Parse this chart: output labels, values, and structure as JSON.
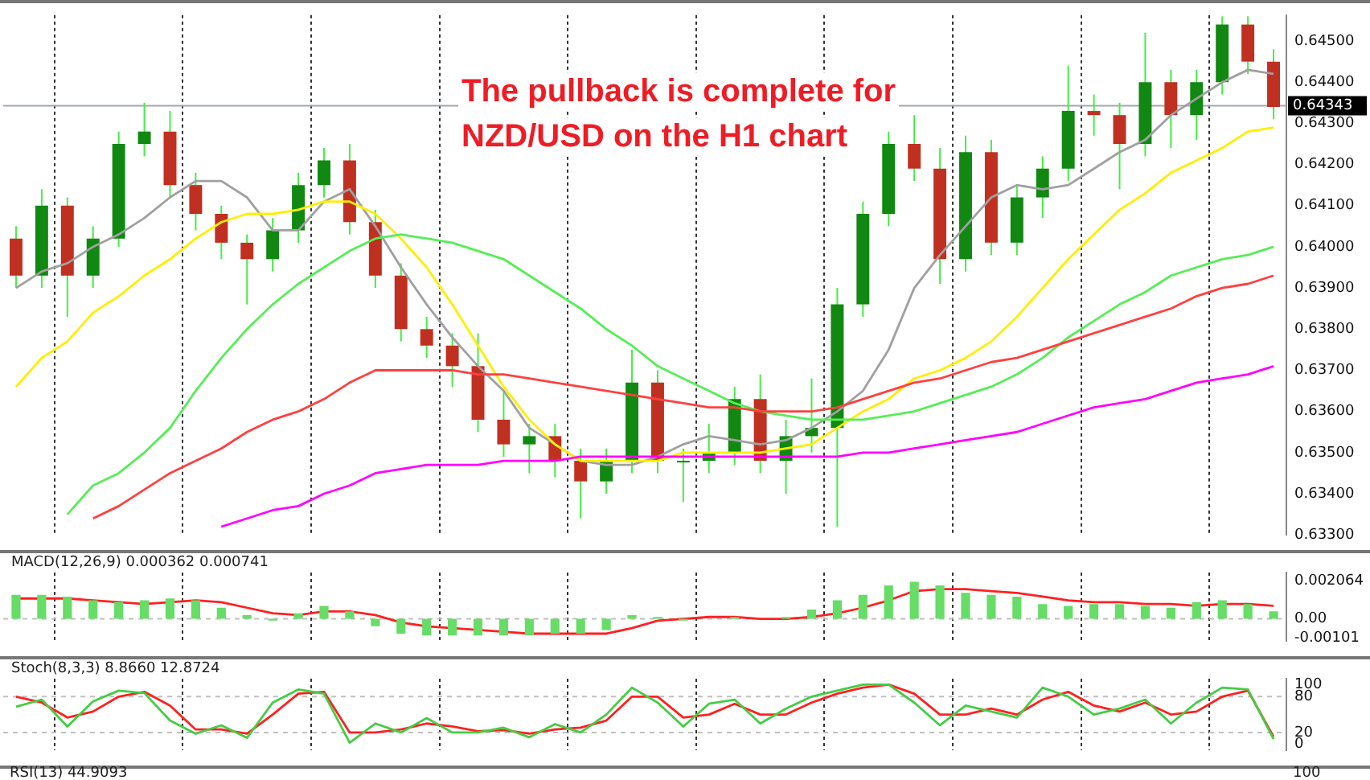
{
  "chart_data": [
    {
      "type": "candlestick",
      "categories": [
        null,
        null,
        null,
        null,
        null,
        null,
        null,
        null,
        null,
        null,
        null,
        null,
        null,
        null,
        null,
        null,
        null,
        null,
        null,
        null,
        null,
        null,
        null,
        null,
        null,
        null,
        null,
        null,
        null,
        null,
        null,
        null,
        null,
        null,
        null,
        null,
        null,
        null,
        null,
        null,
        null,
        null,
        null,
        null,
        null,
        null,
        null,
        null,
        null,
        null
      ],
      "ohlc": [
        [
          0.6402,
          0.6405,
          0.639,
          0.6393
        ],
        [
          0.6393,
          0.6414,
          0.639,
          0.641
        ],
        [
          0.641,
          0.6412,
          0.6383,
          0.6393
        ],
        [
          0.6393,
          0.6405,
          0.639,
          0.6402
        ],
        [
          0.6402,
          0.6428,
          0.64,
          0.6425
        ],
        [
          0.6425,
          0.6435,
          0.6422,
          0.6428
        ],
        [
          0.6428,
          0.6433,
          0.6412,
          0.6415
        ],
        [
          0.6415,
          0.6418,
          0.6404,
          0.6408
        ],
        [
          0.6408,
          0.641,
          0.6397,
          0.6401
        ],
        [
          0.6401,
          0.6403,
          0.6386,
          0.6397
        ],
        [
          0.6397,
          0.6407,
          0.6394,
          0.6404
        ],
        [
          0.6404,
          0.6418,
          0.6401,
          0.6415
        ],
        [
          0.6415,
          0.6424,
          0.6412,
          0.6421
        ],
        [
          0.6421,
          0.6425,
          0.6403,
          0.6406
        ],
        [
          0.6406,
          0.6409,
          0.639,
          0.6393
        ],
        [
          0.6393,
          0.6396,
          0.6377,
          0.638
        ],
        [
          0.638,
          0.6383,
          0.6373,
          0.6376
        ],
        [
          0.6376,
          0.6379,
          0.6366,
          0.6371
        ],
        [
          0.6371,
          0.6379,
          0.6355,
          0.6358
        ],
        [
          0.6358,
          0.6365,
          0.6349,
          0.6352
        ],
        [
          0.6352,
          0.6357,
          0.6345,
          0.6354
        ],
        [
          0.6354,
          0.6357,
          0.6344,
          0.6348
        ],
        [
          0.6348,
          0.6351,
          0.6334,
          0.6343
        ],
        [
          0.6343,
          0.6351,
          0.634,
          0.6348
        ],
        [
          0.6348,
          0.6375,
          0.6345,
          0.6367
        ],
        [
          0.6367,
          0.637,
          0.6345,
          0.6348
        ],
        [
          0.6348,
          0.6351,
          0.6338,
          0.6348
        ],
        [
          0.6348,
          0.6357,
          0.6345,
          0.635
        ],
        [
          0.635,
          0.6366,
          0.6347,
          0.6363
        ],
        [
          0.6363,
          0.6369,
          0.6345,
          0.6348
        ],
        [
          0.6348,
          0.6358,
          0.634,
          0.6354
        ],
        [
          0.6354,
          0.6368,
          0.635,
          0.6356
        ],
        [
          0.6356,
          0.639,
          0.6332,
          0.6386
        ],
        [
          0.6386,
          0.6411,
          0.6383,
          0.6408
        ],
        [
          0.6408,
          0.6428,
          0.6405,
          0.6425
        ],
        [
          0.6425,
          0.6432,
          0.6416,
          0.6419
        ],
        [
          0.6419,
          0.6424,
          0.6391,
          0.6397
        ],
        [
          0.6397,
          0.6427,
          0.6394,
          0.6423
        ],
        [
          0.6423,
          0.6426,
          0.6398,
          0.6401
        ],
        [
          0.6401,
          0.6415,
          0.6398,
          0.6412
        ],
        [
          0.6412,
          0.6422,
          0.6407,
          0.6419
        ],
        [
          0.6419,
          0.6444,
          0.6416,
          0.6433
        ],
        [
          0.6433,
          0.6437,
          0.6427,
          0.6432
        ],
        [
          0.6432,
          0.6435,
          0.6414,
          0.6425
        ],
        [
          0.6425,
          0.6452,
          0.6422,
          0.644
        ],
        [
          0.644,
          0.6443,
          0.6424,
          0.6432
        ],
        [
          0.6432,
          0.6443,
          0.6426,
          0.644
        ],
        [
          0.644,
          0.6456,
          0.6437,
          0.6454
        ],
        [
          0.6454,
          0.6456,
          0.6442,
          0.6445
        ],
        [
          0.6445,
          0.6448,
          0.6431,
          0.6434
        ]
      ],
      "series": [
        {
          "type": "line",
          "color": "#ff00ff",
          "values": [
            null,
            null,
            null,
            null,
            null,
            null,
            null,
            null,
            0.6332,
            0.6334,
            0.6336,
            0.6337,
            0.634,
            0.6342,
            0.6345,
            0.6346,
            0.6347,
            0.6347,
            0.6347,
            0.6348,
            0.6348,
            0.6348,
            0.6349,
            0.6349,
            0.6349,
            0.6349,
            0.6349,
            0.6349,
            0.6349,
            0.6349,
            0.6349,
            0.6349,
            0.6349,
            0.635,
            0.635,
            0.6351,
            0.6352,
            0.6353,
            0.6354,
            0.6355,
            0.6357,
            0.6359,
            0.6361,
            0.6362,
            0.6363,
            0.6365,
            0.6367,
            0.6368,
            0.6369,
            0.6371
          ]
        },
        {
          "type": "line",
          "color": "#ff4040",
          "values": [
            null,
            null,
            null,
            0.6334,
            0.6337,
            0.6341,
            0.6345,
            0.6348,
            0.6351,
            0.6355,
            0.6358,
            0.636,
            0.6363,
            0.6367,
            0.637,
            0.637,
            0.637,
            0.637,
            0.6369,
            0.6369,
            0.6368,
            0.6367,
            0.6366,
            0.6365,
            0.6364,
            0.6363,
            0.6362,
            0.6361,
            0.6361,
            0.636,
            0.636,
            0.636,
            0.6361,
            0.6363,
            0.6365,
            0.6367,
            0.6368,
            0.637,
            0.6372,
            0.6373,
            0.6375,
            0.6377,
            0.6379,
            0.6381,
            0.6383,
            0.6385,
            0.6388,
            0.639,
            0.6391,
            0.6393
          ]
        },
        {
          "type": "line",
          "color": "#55ee55",
          "values": [
            null,
            null,
            0.6335,
            0.6342,
            0.6345,
            0.635,
            0.6356,
            0.6365,
            0.6373,
            0.638,
            0.6386,
            0.6391,
            0.6395,
            0.6399,
            0.6402,
            0.6403,
            0.6402,
            0.6401,
            0.6399,
            0.6397,
            0.6393,
            0.6389,
            0.6385,
            0.638,
            0.6376,
            0.6371,
            0.6368,
            0.6365,
            0.6362,
            0.636,
            0.6359,
            0.6358,
            0.6358,
            0.6358,
            0.6359,
            0.636,
            0.6362,
            0.6364,
            0.6366,
            0.6369,
            0.6373,
            0.6378,
            0.6382,
            0.6386,
            0.6389,
            0.6393,
            0.6395,
            0.6397,
            0.6398,
            0.64
          ]
        },
        {
          "type": "line",
          "color": "#ffee00",
          "values": [
            0.6366,
            0.6373,
            0.6377,
            0.6384,
            0.6388,
            0.6393,
            0.6397,
            0.6402,
            0.6406,
            0.6408,
            0.6408,
            0.6409,
            0.6411,
            0.6411,
            0.6408,
            0.6402,
            0.6395,
            0.6386,
            0.6376,
            0.6366,
            0.6358,
            0.6352,
            0.6348,
            0.6348,
            0.6348,
            0.6348,
            0.635,
            0.635,
            0.635,
            0.635,
            0.6351,
            0.6352,
            0.6356,
            0.636,
            0.6363,
            0.6368,
            0.637,
            0.6373,
            0.6377,
            0.6383,
            0.639,
            0.6397,
            0.6403,
            0.6409,
            0.6413,
            0.6418,
            0.6421,
            0.6424,
            0.6428,
            0.6429
          ]
        },
        {
          "type": "line",
          "color": "#a0a0a0",
          "values": [
            0.639,
            0.6394,
            0.6396,
            0.64,
            0.6403,
            0.6407,
            0.6412,
            0.6416,
            0.6416,
            0.6412,
            0.6404,
            0.6404,
            0.6411,
            0.6414,
            0.6405,
            0.6395,
            0.6386,
            0.6378,
            0.6371,
            0.6365,
            0.6356,
            0.6352,
            0.6348,
            0.6347,
            0.6347,
            0.6349,
            0.6352,
            0.6354,
            0.6353,
            0.6352,
            0.6353,
            0.6356,
            0.636,
            0.6365,
            0.6375,
            0.639,
            0.6398,
            0.6405,
            0.6412,
            0.6415,
            0.6414,
            0.6415,
            0.6419,
            0.6423,
            0.6426,
            0.6432,
            0.6436,
            0.644,
            0.6443,
            0.6442
          ]
        }
      ],
      "ylim": [
        0.633,
        0.64563
      ],
      "yticks": [
        {
          "value": 0.633,
          "label": "0.63300"
        },
        {
          "value": 0.634,
          "label": "0.63400"
        },
        {
          "value": 0.635,
          "label": "0.63500"
        },
        {
          "value": 0.636,
          "label": "0.63600"
        },
        {
          "value": 0.637,
          "label": "0.63700"
        },
        {
          "value": 0.638,
          "label": "0.63800"
        },
        {
          "value": 0.639,
          "label": "0.63900"
        },
        {
          "value": 0.64,
          "label": "0.64000"
        },
        {
          "value": 0.641,
          "label": "0.64100"
        },
        {
          "value": 0.642,
          "label": "0.64200"
        },
        {
          "value": 0.643,
          "label": "0.64300"
        },
        {
          "value": 0.644,
          "label": "0.64400"
        },
        {
          "value": 0.645,
          "label": "0.64500"
        }
      ],
      "ref_lines": [
        {
          "axis": "y",
          "value": 0.64343,
          "label": "0.64343",
          "color": "#a0a8b0"
        }
      ],
      "annotations": [
        "The pullback is complete for NZD/USD on the H1 chart"
      ],
      "grid": "x",
      "tick_labels": "y"
    },
    {
      "type": "bar",
      "title": "MACD(12,26,9) 0.000362 0.000741",
      "categories": [
        null,
        null,
        null,
        null,
        null,
        null,
        null,
        null,
        null,
        null,
        null,
        null,
        null,
        null,
        null,
        null,
        null,
        null,
        null,
        null,
        null,
        null,
        null,
        null,
        null,
        null,
        null,
        null,
        null,
        null,
        null,
        null,
        null,
        null,
        null,
        null,
        null,
        null,
        null,
        null,
        null,
        null,
        null,
        null,
        null,
        null,
        null,
        null,
        null,
        null
      ],
      "series": [
        {
          "type": "bar",
          "color": "#66dd66",
          "values": [
            0.0013,
            0.0013,
            0.0012,
            0.001,
            0.0009,
            0.001,
            0.0011,
            0.001,
            0.0006,
            0.0002,
            -0.0001,
            0.0003,
            0.0007,
            0.0004,
            -0.0004,
            -0.0008,
            -0.0009,
            -0.0009,
            -0.0009,
            -0.0009,
            -0.0009,
            -0.0008,
            -0.0008,
            -0.0006,
            0.0002,
            0.0001,
            -0.0001,
            0,
            0.0001,
            0,
            0.0001,
            0.0005,
            0.001,
            0.0013,
            0.0018,
            0.002,
            0.0018,
            0.0014,
            0.0013,
            0.0012,
            0.0008,
            0.0007,
            0.0008,
            0.0008,
            0.0007,
            0.0006,
            0.0009,
            0.001,
            0.0008,
            0.0004
          ]
        },
        {
          "type": "line",
          "color": "#ff2020",
          "values": [
            0.0011,
            0.0011,
            0.0011,
            0.001,
            0.0009,
            0.0008,
            0.0009,
            0.001,
            0.0009,
            0.0006,
            0.0003,
            0.0002,
            0.0004,
            0.0004,
            0.0002,
            -0.0002,
            -0.0004,
            -0.0005,
            -0.0006,
            -0.0007,
            -0.0008,
            -0.0008,
            -0.0008,
            -0.0008,
            -0.0005,
            -0.0001,
            0,
            0.0001,
            0.0001,
            0,
            0,
            0.0001,
            0.0003,
            0.0006,
            0.001,
            0.0015,
            0.0016,
            0.0016,
            0.0015,
            0.0014,
            0.0012,
            0.001,
            0.0009,
            0.0009,
            0.0008,
            0.0008,
            0.0007,
            0.0008,
            0.0008,
            0.0007
          ]
        }
      ],
      "ylim": [
        -0.0012,
        0.0025
      ],
      "yticks": [
        0.002064,
        {
          "value": 0,
          "label": "0.00"
        },
        -0.00101
      ],
      "ref_lines": [
        {
          "axis": "y",
          "value": 0,
          "color": "#c0c0c0",
          "line_style": "dashed"
        }
      ],
      "grid": "x",
      "tick_labels": "y"
    },
    {
      "type": "line",
      "title": "Stoch(8,3,3) 8.8660 12.8724",
      "categories": [
        null,
        null,
        null,
        null,
        null,
        null,
        null,
        null,
        null,
        null,
        null,
        null,
        null,
        null,
        null,
        null,
        null,
        null,
        null,
        null,
        null,
        null,
        null,
        null,
        null,
        null,
        null,
        null,
        null,
        null,
        null,
        null,
        null,
        null,
        null,
        null,
        null,
        null,
        null,
        null,
        null,
        null,
        null,
        null,
        null,
        null,
        null,
        null,
        null,
        null
      ],
      "series": [
        {
          "color": "#44cc44",
          "values": [
            63,
            75,
            30,
            72,
            90,
            86,
            40,
            18,
            32,
            11,
            70,
            92,
            85,
            3,
            35,
            20,
            44,
            20,
            20,
            28,
            12,
            34,
            20,
            50,
            95,
            70,
            30,
            68,
            75,
            35,
            60,
            80,
            90,
            100,
            100,
            70,
            32,
            65,
            55,
            45,
            95,
            80,
            50,
            60,
            75,
            35,
            70,
            95,
            92,
            9
          ]
        },
        {
          "color": "#ff2020",
          "values": [
            80,
            70,
            45,
            55,
            80,
            88,
            65,
            25,
            25,
            18,
            50,
            85,
            88,
            20,
            20,
            25,
            35,
            30,
            22,
            24,
            18,
            25,
            28,
            40,
            80,
            80,
            45,
            50,
            68,
            50,
            50,
            70,
            85,
            95,
            100,
            85,
            50,
            50,
            60,
            50,
            75,
            88,
            65,
            55,
            70,
            50,
            55,
            80,
            90,
            13
          ]
        }
      ],
      "ylim": [
        -10,
        110
      ],
      "yticks": [
        100,
        80,
        20,
        0
      ],
      "ref_lines": [
        {
          "axis": "y",
          "value": 80,
          "color": "#c0c0c0",
          "line_style": "dashed"
        },
        {
          "axis": "y",
          "value": 20,
          "color": "#c0c0c0",
          "line_style": "dashed"
        }
      ],
      "grid": "x",
      "tick_labels": "y"
    },
    {
      "type": "other",
      "title": "RSI(13) 44.9093",
      "annotations": [
        "100"
      ]
    }
  ]
}
